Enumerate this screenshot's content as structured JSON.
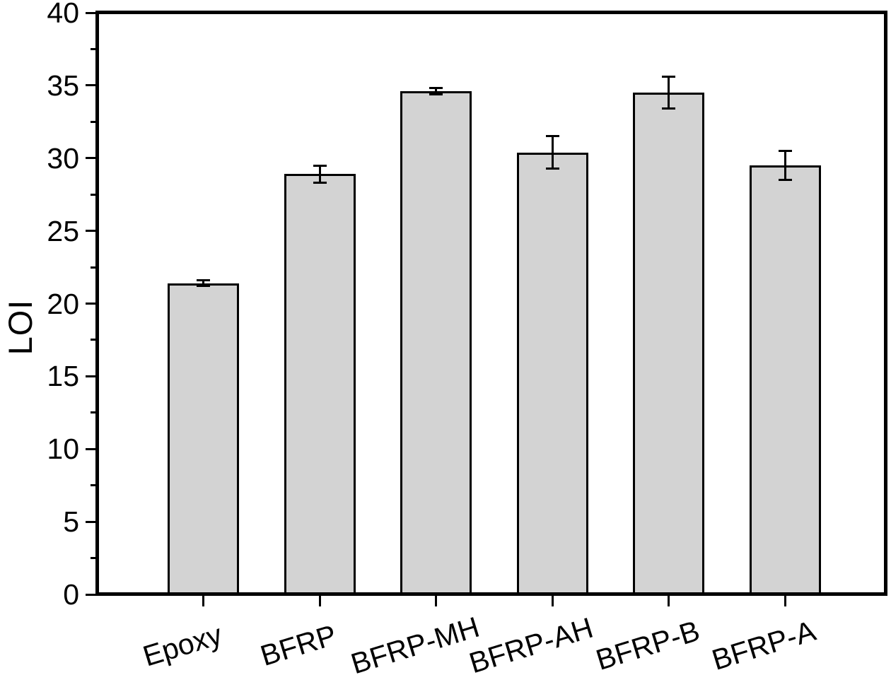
{
  "figure": {
    "background_color": "#ffffff",
    "axis_color": "#000000"
  },
  "chart_data": {
    "type": "bar",
    "title": "",
    "xlabel": "",
    "ylabel": "LOI",
    "categories": [
      "Epoxy",
      "BFRP",
      "BFRP-MH",
      "BFRP-AH",
      "BFRP-B",
      "BFRP-A"
    ],
    "values": [
      21.4,
      28.9,
      34.6,
      30.4,
      34.5,
      29.5
    ],
    "errors": [
      0.2,
      0.6,
      0.2,
      1.1,
      1.1,
      1.0
    ],
    "ylim": [
      0,
      40
    ],
    "yticks": [
      0,
      5,
      10,
      15,
      20,
      25,
      30,
      35,
      40
    ],
    "ytick_labels": [
      "0",
      "5",
      "10",
      "15",
      "20",
      "25",
      "30",
      "35",
      "40"
    ],
    "minor_ytick_step": 2.5,
    "bar_fill_color": "#d3d3d3",
    "bar_edge_color": "#000000",
    "error_bar_color": "#000000",
    "error_bars": true,
    "grid": false,
    "legend": null,
    "x_tick_label_rotation_deg": -17
  }
}
